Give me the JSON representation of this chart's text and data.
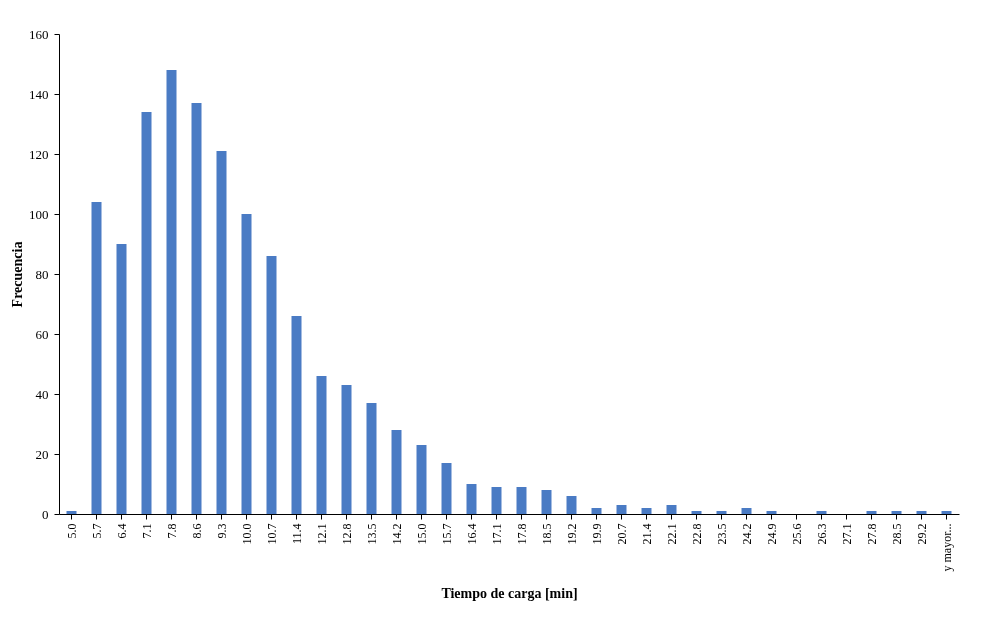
{
  "chart_data": {
    "type": "bar",
    "xlabel": "Tiempo de carga [min]",
    "ylabel": "Frecuencia",
    "categories": [
      "5.0",
      "5.7",
      "6.4",
      "7.1",
      "7.8",
      "8.6",
      "9.3",
      "10.0",
      "10.7",
      "11.4",
      "12.1",
      "12.8",
      "13.5",
      "14.2",
      "15.0",
      "15.7",
      "16.4",
      "17.1",
      "17.8",
      "18.5",
      "19.2",
      "19.9",
      "20.7",
      "21.4",
      "22.1",
      "22.8",
      "23.5",
      "24.2",
      "24.9",
      "25.6",
      "26.3",
      "27.1",
      "27.8",
      "28.5",
      "29.2",
      "y mayor..."
    ],
    "values": [
      1,
      104,
      90,
      134,
      148,
      137,
      121,
      100,
      86,
      66,
      46,
      43,
      37,
      28,
      23,
      17,
      10,
      9,
      9,
      8,
      6,
      2,
      3,
      2,
      3,
      1,
      1,
      2,
      1,
      0,
      1,
      0,
      1,
      1,
      1,
      1
    ],
    "color": "#4a7bc4",
    "ylim": [
      0,
      160
    ],
    "yticks": [
      0,
      20,
      40,
      60,
      80,
      100,
      120,
      140,
      160
    ],
    "grid": false
  }
}
